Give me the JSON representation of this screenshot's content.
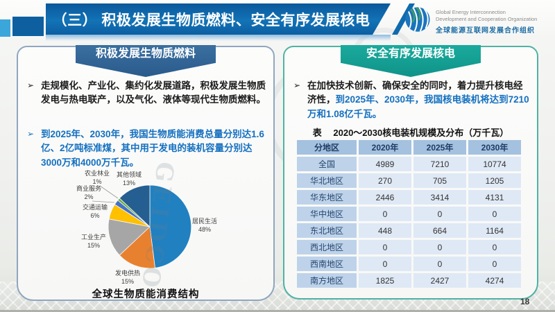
{
  "slide": {
    "title": "（三） 积极发展生物质燃料、安全有序发展核电",
    "page_number": "18",
    "watermark": "GEIDCO",
    "bullet_marker": "➢"
  },
  "logo": {
    "name_en_line1": "Global Energy Interconnection",
    "name_en_line2": "Development and Cooperation Organization",
    "name_zh": "全球能源互联网发展合作组织"
  },
  "left_panel": {
    "banner": "积极发展生物质燃料",
    "bullet1": "走规模化、产业化、集约化发展道路，积极发展生物质发电与热电联产，以及气化、液体等现代生物质燃料。",
    "bullet2": "到2025年、2030年，我国生物质能消费总量分别达1.6亿、2亿吨标准煤，其中用于发电的装机容量分别达3000万和4000万千瓦。",
    "chart_caption": "全球生物质能消费结构"
  },
  "right_panel": {
    "banner": "安全有序发展核电",
    "bullet_black": "在加快技术创新、确保安全的同时，着力提升核电经济性，",
    "bullet_blue": "到2025年、2030年，我国核电装机将达到7210万和1.08亿千瓦。",
    "table_title": "表　 2020～2030核电装机规模及分布（万千瓦）"
  },
  "chart_data": [
    {
      "type": "pie",
      "title": "全球生物质能消费结构",
      "categories": [
        "居民生活",
        "发电供热",
        "工业生产",
        "交通运输",
        "商业服务",
        "农业林业",
        "其他领域"
      ],
      "values": [
        48,
        15,
        15,
        6,
        2,
        1,
        13
      ],
      "unit": "%",
      "colors": [
        "#2180C0",
        "#E8812F",
        "#A6A6A6",
        "#FFC000",
        "#4472C4",
        "#70AD47",
        "#255E91"
      ],
      "start_angle_deg": 0,
      "direction": "clockwise",
      "labels": "outside",
      "legend": "none"
    },
    {
      "type": "table",
      "title": "2020～2030核电装机规模及分布（万千瓦）",
      "columns": [
        "分地区",
        "2020年",
        "2025年",
        "2030年"
      ],
      "rows": [
        [
          "全国",
          "4989",
          "7210",
          "10774"
        ],
        [
          "华北地区",
          "270",
          "705",
          "1205"
        ],
        [
          "华东地区",
          "2446",
          "3414",
          "4131"
        ],
        [
          "华中地区",
          "0",
          "0",
          "0"
        ],
        [
          "东北地区",
          "448",
          "664",
          "1164"
        ],
        [
          "西北地区",
          "0",
          "0",
          "0"
        ],
        [
          "西南地区",
          "0",
          "0",
          "0"
        ],
        [
          "南方地区",
          "1825",
          "2427",
          "4274"
        ]
      ]
    }
  ],
  "colors": {
    "title_bar": "#0D66A8",
    "left_banner": "#2F6191",
    "right_banner": "#149E92",
    "accent_blue_text": "#1470C0",
    "table_header_bg": "#A4C2DF",
    "table_rowhead_bg": "#BED3EA",
    "table_cell_bg": "#DFE9F5"
  }
}
